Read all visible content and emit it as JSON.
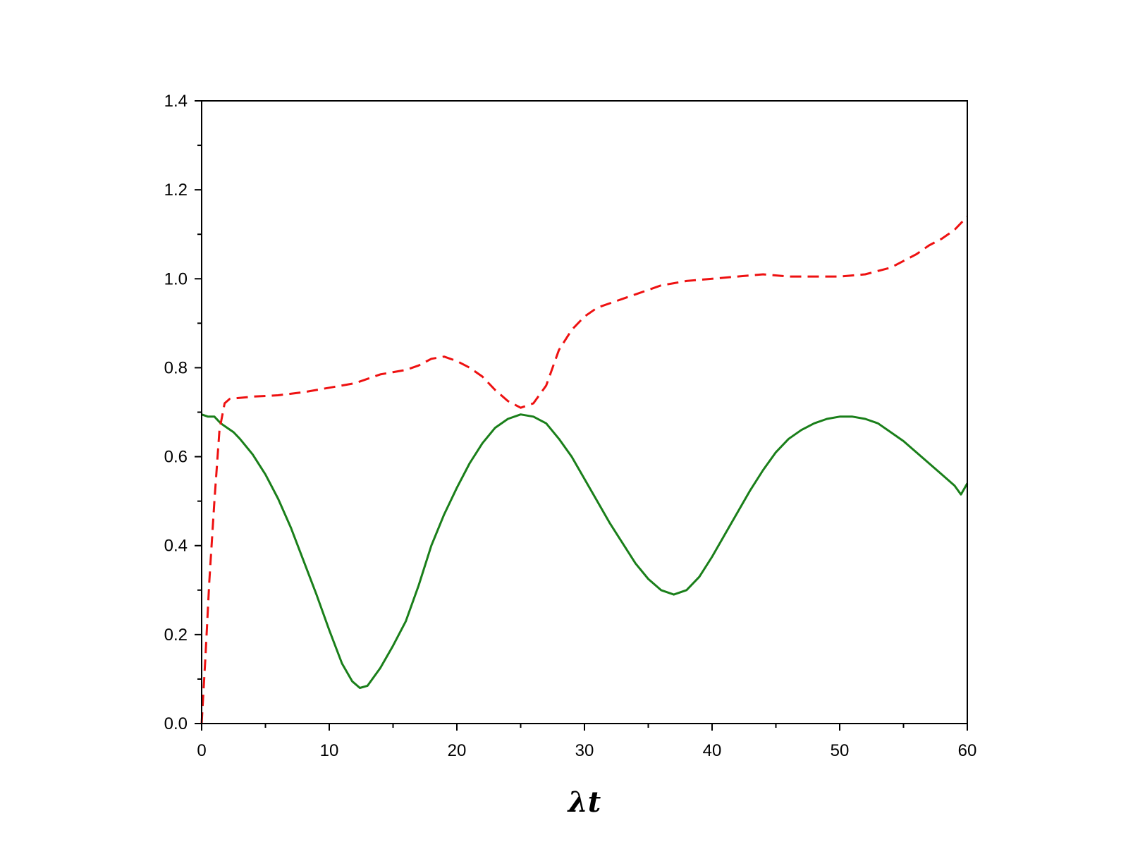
{
  "chart_data": {
    "type": "line",
    "title": "",
    "xlabel": "λt",
    "ylabel": "",
    "xlim": [
      0,
      60
    ],
    "ylim": [
      0,
      1.4
    ],
    "grid": false,
    "legend": "none",
    "x_ticks": [
      0,
      10,
      20,
      30,
      40,
      50,
      60
    ],
    "x_tick_labels": [
      "0",
      "10",
      "20",
      "30",
      "40",
      "50",
      "60"
    ],
    "y_ticks": [
      0.0,
      0.2,
      0.4,
      0.6,
      0.8,
      1.0,
      1.2,
      1.4
    ],
    "y_tick_labels": [
      "0.0",
      "0.2",
      "0.4",
      "0.6",
      "0.8",
      "1.0",
      "1.2",
      "1.4"
    ],
    "series": [
      {
        "style": "solid",
        "color": "#1a7f1a",
        "points": [
          [
            0,
            0.695
          ],
          [
            0.5,
            0.69
          ],
          [
            1,
            0.69
          ],
          [
            1.5,
            0.675
          ],
          [
            2,
            0.665
          ],
          [
            2.5,
            0.655
          ],
          [
            3,
            0.64
          ],
          [
            4,
            0.605
          ],
          [
            5,
            0.56
          ],
          [
            6,
            0.505
          ],
          [
            7,
            0.44
          ],
          [
            8,
            0.365
          ],
          [
            9,
            0.29
          ],
          [
            10,
            0.21
          ],
          [
            11,
            0.135
          ],
          [
            11.8,
            0.095
          ],
          [
            12.4,
            0.08
          ],
          [
            13,
            0.085
          ],
          [
            14,
            0.125
          ],
          [
            15,
            0.175
          ],
          [
            16,
            0.23
          ],
          [
            17,
            0.31
          ],
          [
            18,
            0.4
          ],
          [
            19,
            0.47
          ],
          [
            20,
            0.53
          ],
          [
            21,
            0.585
          ],
          [
            22,
            0.63
          ],
          [
            23,
            0.665
          ],
          [
            24,
            0.685
          ],
          [
            25,
            0.695
          ],
          [
            26,
            0.69
          ],
          [
            27,
            0.675
          ],
          [
            28,
            0.64
          ],
          [
            29,
            0.6
          ],
          [
            30,
            0.55
          ],
          [
            31,
            0.5
          ],
          [
            32,
            0.45
          ],
          [
            33,
            0.405
          ],
          [
            34,
            0.36
          ],
          [
            35,
            0.325
          ],
          [
            36,
            0.3
          ],
          [
            37,
            0.29
          ],
          [
            38,
            0.3
          ],
          [
            39,
            0.33
          ],
          [
            40,
            0.375
          ],
          [
            41,
            0.425
          ],
          [
            42,
            0.475
          ],
          [
            43,
            0.525
          ],
          [
            44,
            0.57
          ],
          [
            45,
            0.61
          ],
          [
            46,
            0.64
          ],
          [
            47,
            0.66
          ],
          [
            48,
            0.675
          ],
          [
            49,
            0.685
          ],
          [
            50,
            0.69
          ],
          [
            51,
            0.69
          ],
          [
            52,
            0.685
          ],
          [
            53,
            0.675
          ],
          [
            54,
            0.655
          ],
          [
            55,
            0.635
          ],
          [
            56,
            0.61
          ],
          [
            57,
            0.585
          ],
          [
            58,
            0.56
          ],
          [
            59,
            0.535
          ],
          [
            59.5,
            0.515
          ],
          [
            60,
            0.54
          ]
        ]
      },
      {
        "style": "dashed",
        "color": "#ee1111",
        "points": [
          [
            0,
            0.0
          ],
          [
            0.3,
            0.15
          ],
          [
            0.6,
            0.32
          ],
          [
            1,
            0.5
          ],
          [
            1.4,
            0.66
          ],
          [
            1.8,
            0.72
          ],
          [
            2.2,
            0.73
          ],
          [
            4,
            0.735
          ],
          [
            6,
            0.738
          ],
          [
            8,
            0.745
          ],
          [
            10,
            0.755
          ],
          [
            12,
            0.765
          ],
          [
            14,
            0.785
          ],
          [
            16,
            0.795
          ],
          [
            17,
            0.805
          ],
          [
            18,
            0.82
          ],
          [
            19,
            0.825
          ],
          [
            20,
            0.815
          ],
          [
            21,
            0.8
          ],
          [
            22,
            0.78
          ],
          [
            23,
            0.75
          ],
          [
            24,
            0.725
          ],
          [
            25,
            0.71
          ],
          [
            26,
            0.72
          ],
          [
            27,
            0.76
          ],
          [
            28,
            0.84
          ],
          [
            29,
            0.885
          ],
          [
            30,
            0.915
          ],
          [
            31,
            0.935
          ],
          [
            32,
            0.945
          ],
          [
            33,
            0.955
          ],
          [
            34,
            0.965
          ],
          [
            35,
            0.975
          ],
          [
            36,
            0.985
          ],
          [
            37,
            0.99
          ],
          [
            38,
            0.995
          ],
          [
            40,
            1.0
          ],
          [
            42,
            1.005
          ],
          [
            44,
            1.01
          ],
          [
            46,
            1.005
          ],
          [
            48,
            1.005
          ],
          [
            50,
            1.005
          ],
          [
            52,
            1.01
          ],
          [
            54,
            1.025
          ],
          [
            56,
            1.055
          ],
          [
            57,
            1.075
          ],
          [
            58,
            1.09
          ],
          [
            59,
            1.11
          ],
          [
            60,
            1.14
          ]
        ]
      }
    ]
  }
}
